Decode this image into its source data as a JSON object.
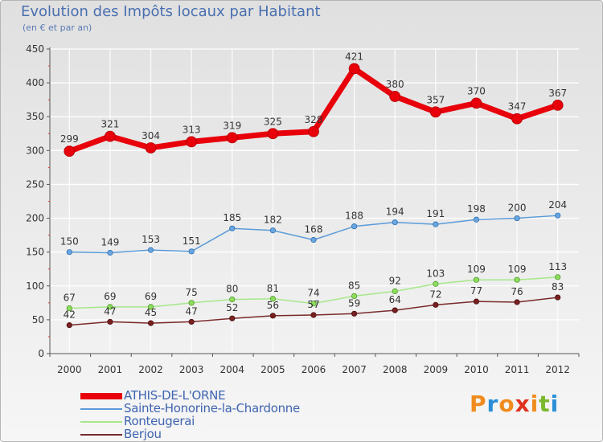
{
  "title": "Evolution des Impôts locaux par Habitant",
  "subtitle": "(en € et par an)",
  "logo": {
    "letters": [
      "P",
      "r",
      "o",
      "x",
      "i",
      "t",
      "i"
    ],
    "colors": [
      "#f08c1e",
      "#2a8fd6",
      "#f08c1e",
      "#e0321e",
      "#f08c1e",
      "#7ab82e",
      "#2a8fd6"
    ]
  },
  "chart_data": {
    "type": "line",
    "title": "Evolution des Impôts locaux par Habitant",
    "subtitle": "(en € et par an)",
    "xlabel": "",
    "ylabel": "",
    "ylim": [
      0,
      450
    ],
    "yticks": [
      0,
      50,
      100,
      150,
      200,
      250,
      300,
      350,
      400,
      450
    ],
    "x": [
      "2000",
      "2001",
      "2002",
      "2003",
      "2004",
      "2005",
      "2006",
      "2007",
      "2008",
      "2009",
      "2010",
      "2011",
      "2012"
    ],
    "series": [
      {
        "name": "ATHIS-DE-L'ORNE",
        "color": "#e8000a",
        "values": [
          299,
          321,
          304,
          313,
          319,
          325,
          328,
          421,
          380,
          357,
          370,
          347,
          367
        ]
      },
      {
        "name": "Sainte-Honorine-la-Chardonne",
        "color": "#5b9bd8",
        "values": [
          150,
          149,
          153,
          151,
          185,
          182,
          168,
          188,
          194,
          191,
          198,
          200,
          204
        ]
      },
      {
        "name": "Ronteugerai",
        "color": "#90e070",
        "values": [
          67,
          69,
          69,
          75,
          80,
          81,
          74,
          85,
          92,
          103,
          109,
          109,
          113
        ]
      },
      {
        "name": "Berjou",
        "color": "#7a2a2a",
        "values": [
          42,
          47,
          45,
          47,
          52,
          56,
          57,
          59,
          64,
          72,
          77,
          76,
          83
        ]
      }
    ]
  }
}
